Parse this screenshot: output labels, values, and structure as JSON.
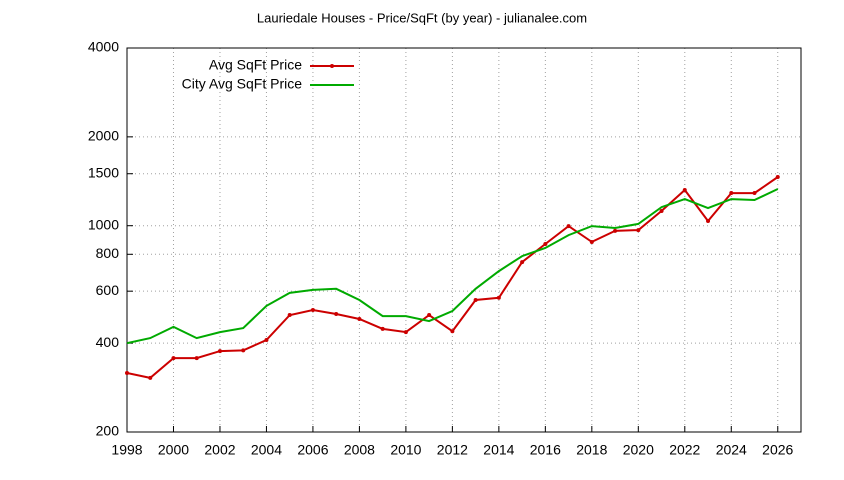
{
  "chart_data": {
    "type": "line",
    "title": "Lauriedale Houses - Price/SqFt (by year) - julianalee.com",
    "x": [
      1998,
      1999,
      2000,
      2001,
      2002,
      2003,
      2004,
      2005,
      2006,
      2007,
      2008,
      2009,
      2010,
      2011,
      2012,
      2013,
      2014,
      2015,
      2016,
      2017,
      2018,
      2019,
      2020,
      2021,
      2022,
      2023,
      2024,
      2025,
      2026
    ],
    "series": [
      {
        "name": "Avg SqFt Price",
        "color": "#cc0000",
        "markers": true,
        "values": [
          317,
          305,
          356,
          356,
          376,
          378,
          410,
          498,
          518,
          502,
          483,
          447,
          436,
          498,
          439,
          560,
          570,
          753,
          867,
          997,
          881,
          960,
          966,
          1122,
          1321,
          1037,
          1290,
          1290,
          1462
        ]
      },
      {
        "name": "City Avg SqFt Price",
        "color": "#00aa00",
        "markers": false,
        "values": [
          400,
          416,
          454,
          416,
          436,
          450,
          535,
          592,
          606,
          611,
          560,
          494,
          494,
          475,
          514,
          611,
          702,
          789,
          840,
          929,
          997,
          982,
          1014,
          1156,
          1231,
          1147,
          1231,
          1222,
          1331
        ]
      }
    ],
    "xlim": [
      1998,
      2027
    ],
    "xticks": [
      1998,
      2000,
      2002,
      2004,
      2006,
      2008,
      2010,
      2012,
      2014,
      2016,
      2018,
      2020,
      2022,
      2024,
      2026
    ],
    "ylim": [
      200,
      4000
    ],
    "yticks": [
      200,
      400,
      600,
      800,
      1000,
      1500,
      2000,
      4000
    ],
    "ylog": true,
    "grid": true,
    "legend": "top-left"
  }
}
